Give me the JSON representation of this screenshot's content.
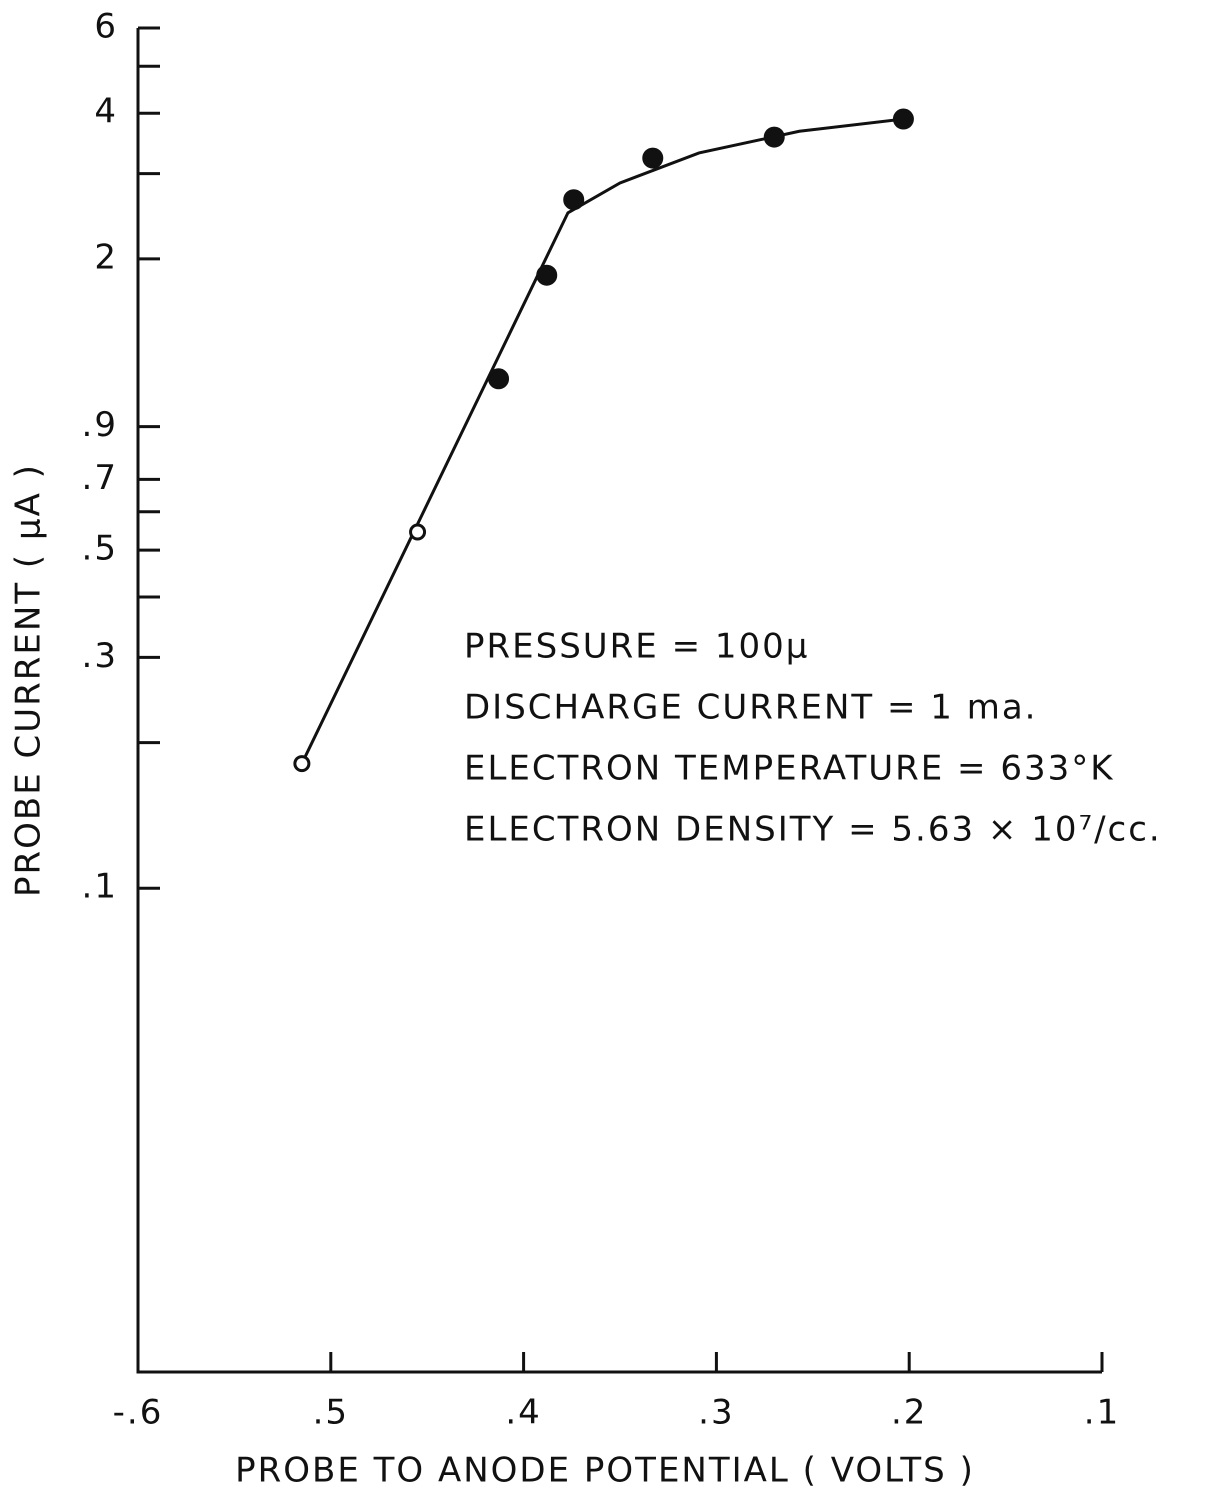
{
  "chart_data": {
    "type": "scatter",
    "x_label": "PROBE TO ANODE POTENTIAL ( VOLTS )",
    "y_label": "PROBE CURRENT ( μA )",
    "log_y": true,
    "xlim": [
      -0.6,
      -0.1
    ],
    "ylim": [
      0.01,
      6
    ],
    "xticks": [
      {
        "value": -0.6,
        "label": "-.6"
      },
      {
        "value": -0.5,
        "label": ".5"
      },
      {
        "value": -0.4,
        "label": ".4"
      },
      {
        "value": -0.3,
        "label": ".3"
      },
      {
        "value": -0.2,
        "label": ".2"
      },
      {
        "value": -0.1,
        "label": ".1"
      }
    ],
    "yticks": [
      6,
      4,
      2,
      {
        "value": 0.9,
        "label": ".9"
      },
      {
        "value": 0.7,
        "label": ".7"
      },
      {
        "value": 0.5,
        "label": ".5"
      },
      {
        "value": 0.3,
        "label": ".3"
      },
      {
        "value": 0.1,
        "label": ".1"
      }
    ],
    "yminor_ticks": [
      5,
      3,
      0.6,
      0.4,
      0.2
    ],
    "color": "#111111",
    "x": [
      -0.515,
      -0.455,
      -0.413,
      -0.388,
      -0.374,
      -0.333,
      -0.27,
      -0.203
    ],
    "values": [
      0.181,
      0.545,
      1.13,
      1.85,
      2.65,
      3.23,
      3.57,
      3.89
    ],
    "filled": [
      false,
      false,
      true,
      true,
      true,
      true,
      true,
      true
    ],
    "fit": {
      "x": [
        -0.515,
        -0.377,
        -0.35,
        -0.309,
        -0.257,
        -0.203
      ],
      "values": [
        0.181,
        2.49,
        2.87,
        3.31,
        3.67,
        3.89
      ]
    },
    "annotations": [
      "PRESSURE = 100μ",
      "DISCHARGE CURRENT = 1 ma.",
      "ELECTRON TEMPERATURE = 633°K",
      "ELECTRON DENSITY = 5.63 × 10⁷/cc."
    ]
  }
}
